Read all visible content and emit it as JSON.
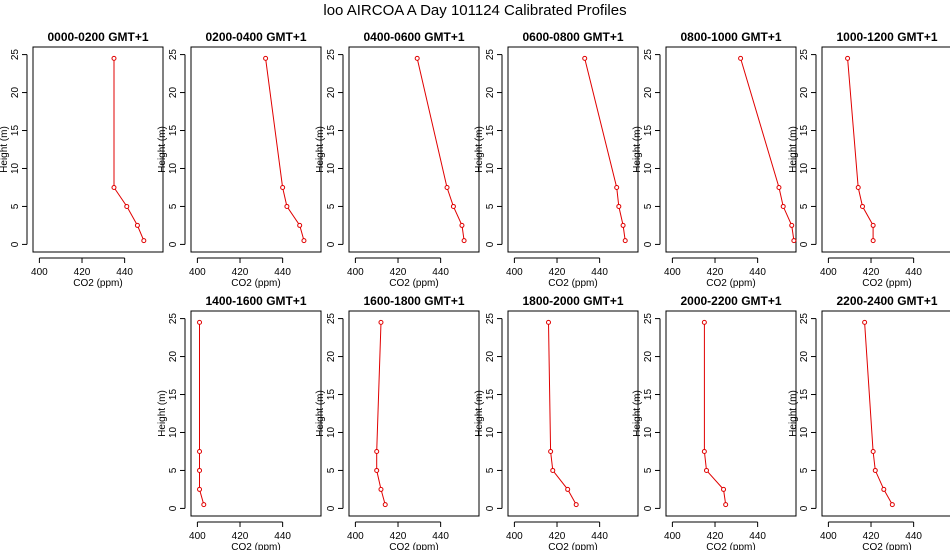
{
  "title": "loo AIRCOA A  Day 101124  Calibrated Profiles",
  "chart_data": {
    "type": "line",
    "line_color": "#e00000",
    "marker": "open-circle",
    "xlabel": "CO2 (ppm)",
    "ylabel": "Height (m)",
    "xlim": [
      397,
      458
    ],
    "ylim": [
      -1,
      26
    ],
    "xticks": [
      400,
      420,
      440
    ],
    "yticks": [
      0,
      5,
      10,
      15,
      20,
      25
    ],
    "grid": false,
    "heights": [
      0.5,
      2.5,
      5,
      7.5,
      24.5
    ],
    "panels": [
      {
        "title": "0000-0200 GMT+1",
        "x": [
          449,
          446,
          441,
          435,
          435
        ]
      },
      {
        "title": "0200-0400 GMT+1",
        "x": [
          450,
          448,
          442,
          440,
          432
        ]
      },
      {
        "title": "0400-0600 GMT+1",
        "x": [
          451,
          450,
          446,
          443,
          429
        ]
      },
      {
        "title": "0600-0800 GMT+1",
        "x": [
          452,
          451,
          449,
          448,
          433
        ]
      },
      {
        "title": "0800-1000 GMT+1",
        "x": [
          457,
          456,
          452,
          450,
          432
        ]
      },
      {
        "title": "1000-1200 GMT+1",
        "x": [
          421,
          421,
          416,
          414,
          409
        ]
      },
      {
        "title": "1400-1600 GMT+1",
        "x": [
          403,
          401,
          401,
          401,
          401
        ]
      },
      {
        "title": "1600-1800 GMT+1",
        "x": [
          414,
          412,
          410,
          410,
          412
        ]
      },
      {
        "title": "1800-2000 GMT+1",
        "x": [
          429,
          425,
          418,
          417,
          416
        ]
      },
      {
        "title": "2000-2200 GMT+1",
        "x": [
          425,
          424,
          416,
          415,
          415
        ]
      },
      {
        "title": "2200-2400 GMT+1",
        "x": [
          430,
          426,
          422,
          421,
          417
        ]
      }
    ]
  }
}
